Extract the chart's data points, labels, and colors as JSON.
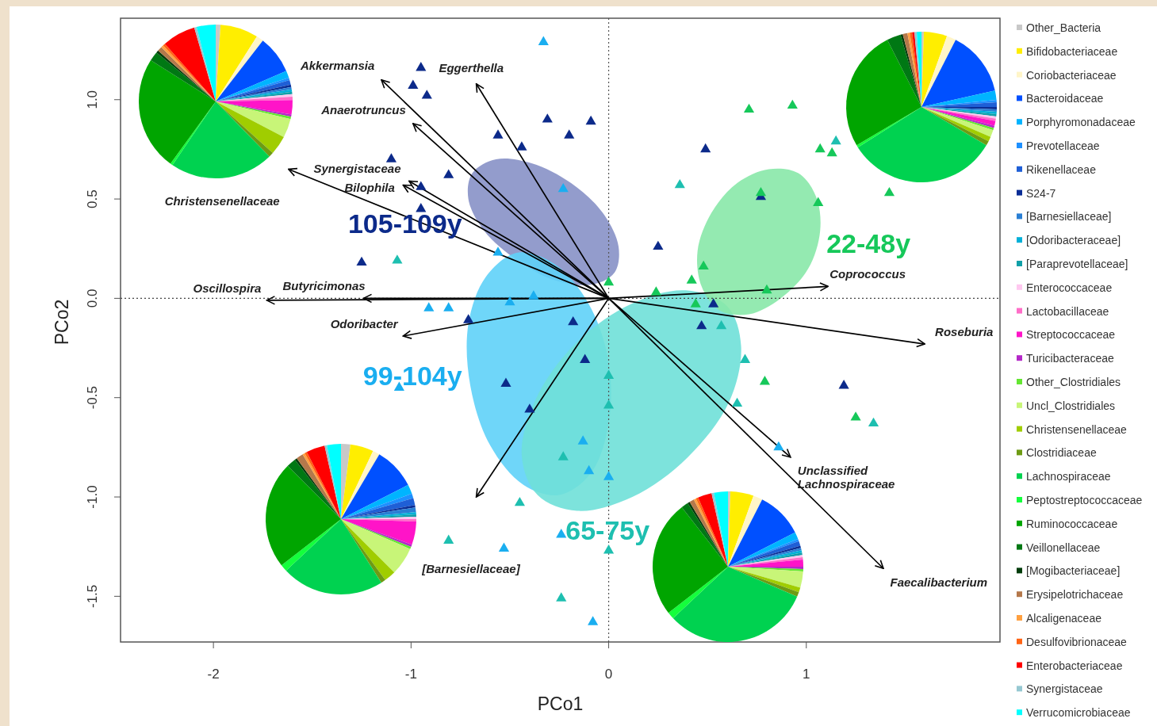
{
  "chart_data": [
    {
      "type": "scatter",
      "xlabel": "PCo1",
      "ylabel": "PCo2",
      "xlim": [
        -2.47,
        1.98
      ],
      "ylim": [
        -1.73,
        1.41
      ],
      "xticks": [
        -2,
        -1,
        0,
        1
      ],
      "yticks": [
        {
          "value": -1.5,
          "label": "-1.5"
        },
        {
          "value": -1,
          "label": "-1.0"
        },
        {
          "value": -0.5,
          "label": "-0.5"
        },
        {
          "value": 0,
          "label": "0.0"
        },
        {
          "value": 0.5,
          "label": "0.5"
        },
        {
          "value": 1,
          "label": "1.0"
        }
      ],
      "ref_lines": [
        {
          "axis": "x",
          "value": 0,
          "line_style": "dotted",
          "color": "#555555"
        },
        {
          "axis": "y",
          "value": 0,
          "line_style": "dotted",
          "color": "#444444"
        }
      ],
      "series": [
        {
          "type": "area",
          "color": "#8791c6",
          "x": [
            0.03,
            -0.08,
            -0.27,
            -0.46,
            -0.63,
            -0.71,
            -0.69,
            -0.57,
            -0.39,
            -0.19,
            -0.03,
            0.05
          ],
          "values": [
            0.13,
            0.07,
            0.09,
            0.19,
            0.34,
            0.5,
            0.63,
            0.7,
            0.68,
            0.58,
            0.43,
            0.26
          ]
        },
        {
          "type": "area",
          "color": "#5fd2f8",
          "x": [
            -0.25,
            -0.43,
            -0.6,
            -0.7,
            -0.71,
            -0.62,
            -0.46,
            -0.27,
            -0.1,
            0.0,
            0.0,
            -0.09
          ],
          "values": [
            -0.99,
            -0.94,
            -0.74,
            -0.44,
            -0.13,
            0.11,
            0.23,
            0.17,
            -0.03,
            -0.32,
            -0.63,
            -0.88
          ]
        },
        {
          "type": "area",
          "color": "#6fe0d8",
          "x": [
            0.6,
            0.67,
            0.61,
            0.4,
            0.12,
            -0.16,
            -0.36,
            -0.44,
            -0.37,
            -0.17,
            0.11,
            0.39
          ],
          "values": [
            -0.04,
            -0.24,
            -0.52,
            -0.8,
            -1.0,
            -1.07,
            -0.99,
            -0.79,
            -0.51,
            -0.23,
            -0.03,
            0.04
          ]
        },
        {
          "type": "area",
          "color": "#88e8a8",
          "x": [
            0.96,
            1.05,
            1.07,
            1.01,
            0.87,
            0.71,
            0.56,
            0.47,
            0.45,
            0.52,
            0.65,
            0.81
          ],
          "values": [
            0.63,
            0.51,
            0.34,
            0.15,
            0.0,
            -0.08,
            -0.06,
            0.06,
            0.24,
            0.43,
            0.58,
            0.65
          ]
        },
        {
          "name": "105-109y",
          "type": "scatter",
          "marker": "triangle",
          "color": "#0c2a8a",
          "x": [
            -0.95,
            -0.99,
            -0.92,
            -0.31,
            -0.09,
            -0.2,
            -0.56,
            -0.44,
            -0.81,
            -1.1,
            -0.95,
            -0.95,
            -1.25,
            0.77,
            0.49,
            0.25,
            0.53,
            0.47,
            -0.71,
            -0.18,
            -0.12,
            -0.52,
            -0.4,
            1.19
          ],
          "values": [
            1.16,
            1.07,
            1.02,
            0.9,
            0.89,
            0.82,
            0.82,
            0.76,
            0.62,
            0.7,
            0.56,
            0.45,
            0.18,
            0.51,
            0.75,
            0.26,
            -0.03,
            -0.14,
            -0.11,
            -0.12,
            -0.31,
            -0.43,
            -0.56,
            -0.44
          ]
        },
        {
          "name": "99-104y",
          "type": "scatter",
          "marker": "triangle",
          "color": "#1aaef0",
          "x": [
            -0.33,
            -0.23,
            -0.56,
            -0.38,
            -0.91,
            -0.81,
            -0.5,
            -1.06,
            -0.13,
            -0.1,
            0.0,
            -0.24,
            -0.53,
            -0.08,
            0.86
          ],
          "values": [
            1.29,
            0.55,
            0.23,
            0.01,
            -0.05,
            -0.05,
            -0.02,
            -0.45,
            -0.72,
            -0.87,
            -0.9,
            -1.19,
            -1.26,
            -1.63,
            -0.75
          ]
        },
        {
          "name": "65-75y",
          "type": "scatter",
          "marker": "triangle",
          "color": "#1ebfb0",
          "x": [
            -1.07,
            -0.81,
            -0.45,
            -0.23,
            0.0,
            0.0,
            -0.24,
            0.0,
            1.15,
            0.36,
            0.57,
            0.69,
            0.65,
            1.34
          ],
          "values": [
            0.19,
            -1.22,
            -1.03,
            -0.8,
            -0.39,
            -0.54,
            -1.51,
            -1.27,
            0.79,
            0.57,
            -0.14,
            -0.31,
            -0.53,
            -0.63
          ]
        },
        {
          "name": "22-48y",
          "type": "scatter",
          "marker": "triangle",
          "color": "#16c85a",
          "x": [
            0.71,
            0.93,
            1.07,
            1.13,
            1.42,
            1.06,
            0.77,
            0.48,
            0.42,
            0.24,
            0.8,
            0.44,
            0.0,
            0.79,
            1.25
          ],
          "values": [
            0.95,
            0.97,
            0.75,
            0.73,
            0.53,
            0.48,
            0.53,
            0.16,
            0.09,
            0.03,
            0.04,
            -0.03,
            0.08,
            -0.42,
            -0.6
          ]
        },
        {
          "name": "Akkermansia",
          "type": "line",
          "color": "#000000",
          "x": [
            0,
            -1.15
          ],
          "values": [
            0,
            1.1
          ]
        },
        {
          "name": "Eggerthella",
          "type": "line",
          "color": "#000000",
          "x": [
            0,
            -0.67
          ],
          "values": [
            0,
            1.08
          ]
        },
        {
          "name": "Anaerotruncus",
          "type": "line",
          "color": "#000000",
          "x": [
            0,
            -0.99
          ],
          "values": [
            0,
            0.88
          ]
        },
        {
          "name": "Synergistaceae",
          "type": "line",
          "color": "#000000",
          "x": [
            0,
            -1.01
          ],
          "values": [
            0,
            0.59
          ]
        },
        {
          "name": "Bilophila",
          "type": "line",
          "color": "#000000",
          "x": [
            0,
            -1.04
          ],
          "values": [
            0,
            0.57
          ]
        },
        {
          "name": "Christensenellaceae",
          "type": "line",
          "color": "#000000",
          "x": [
            0,
            -1.62
          ],
          "values": [
            0,
            0.65
          ]
        },
        {
          "name": "Butyricimonas",
          "type": "line",
          "color": "#000000",
          "x": [
            0,
            -1.24
          ],
          "values": [
            0,
            0.0
          ]
        },
        {
          "name": "Oscillospira",
          "type": "line",
          "color": "#000000",
          "x": [
            0,
            -1.73
          ],
          "values": [
            0,
            -0.01
          ]
        },
        {
          "name": "Odoribacter",
          "type": "line",
          "color": "#000000",
          "x": [
            0,
            -1.04
          ],
          "values": [
            0,
            -0.19
          ]
        },
        {
          "name": "[Barnesiellaceae]",
          "type": "line",
          "color": "#000000",
          "x": [
            0,
            -0.67
          ],
          "values": [
            0,
            -1.0
          ]
        },
        {
          "name": "Coprococcus",
          "type": "line",
          "color": "#000000",
          "x": [
            0,
            1.11
          ],
          "values": [
            0,
            0.06
          ]
        },
        {
          "name": "Roseburia",
          "type": "line",
          "color": "#000000",
          "x": [
            0,
            1.6
          ],
          "values": [
            0,
            -0.23
          ]
        },
        {
          "name": "Unclassified Lachnospiraceae",
          "type": "line",
          "color": "#000000",
          "x": [
            0,
            0.92
          ],
          "values": [
            0,
            -0.8
          ]
        },
        {
          "name": "Faecalibacterium",
          "type": "line",
          "color": "#000000",
          "x": [
            0,
            1.39
          ],
          "values": [
            0,
            -1.36
          ]
        }
      ]
    },
    {
      "type": "pie",
      "legend": "right",
      "categories": [
        "Other_Bacteria",
        "Bifidobacteriaceae",
        "Coriobacteriaceae",
        "Bacteroidaceae",
        "Porphyromonadaceae",
        "Prevotellaceae",
        "Rikenellaceae",
        "S24-7",
        "[Barnesiellaceae]",
        "[Odoribacteraceae]",
        "[Paraprevotellaceae]",
        "Enterococcaceae",
        "Lactobacillaceae",
        "Streptococcaceae",
        "Turicibacteraceae",
        "Other_Clostridiales",
        "Uncl_Clostridiales",
        "Christensenellaceae",
        "Clostridiaceae",
        "Lachnospiraceae",
        "Peptostreptococcaceae",
        "Ruminococcaceae",
        "Veillonellaceae",
        "[Mogibacteriaceae]",
        "Erysipelotrichaceae",
        "Alcaligenaceae",
        "Desulfovibrionaceae",
        "Enterobacteriaceae",
        "Synergistaceae",
        "Verrucomicrobiaceae"
      ],
      "values": [
        1,
        8,
        1.5,
        8,
        1.5,
        0.5,
        1,
        0.5,
        0.5,
        0.5,
        0.5,
        0.5,
        0.7,
        3,
        0.5,
        0.5,
        4,
        4,
        1,
        21.8,
        0.5,
        24,
        2,
        0.5,
        1,
        0.5,
        0.5,
        7,
        0.5,
        4
      ],
      "colors": [
        "#c8c8c8",
        "#ffee00",
        "#fff5c8",
        "#0050ff",
        "#00b4ff",
        "#1e90ff",
        "#1f5fd6",
        "#0a2d96",
        "#2a7fd4",
        "#00b0d8",
        "#10a0a8",
        "#ffc8f0",
        "#ff6ec8",
        "#ff14c8",
        "#b428c8",
        "#64e632",
        "#c8f578",
        "#a0cd00",
        "#6e9b14",
        "#00d250",
        "#14ff3c",
        "#00a500",
        "#007814",
        "#003c0a",
        "#b4784b",
        "#ffa040",
        "#ff6414",
        "#ff0000",
        "#96c8d2",
        "#00ffff"
      ]
    },
    {
      "type": "pie",
      "categories": [
        null,
        null,
        null,
        null,
        null,
        null,
        null,
        null,
        null,
        null,
        null,
        null,
        null,
        null,
        null,
        null,
        null,
        null,
        null,
        null,
        null,
        null,
        null,
        null,
        null,
        null,
        null,
        null,
        null,
        null
      ],
      "values": [
        0.5,
        5,
        2,
        14,
        2,
        0.5,
        1,
        0.5,
        0.5,
        0.5,
        0.5,
        0.5,
        0.5,
        1,
        0.5,
        0.5,
        1.5,
        1,
        1,
        32.5,
        0.5,
        26,
        3,
        0.5,
        1,
        0.5,
        0.5,
        0.5,
        0.5,
        1
      ],
      "colors": [
        "#c8c8c8",
        "#ffee00",
        "#fff5c8",
        "#0050ff",
        "#00b4ff",
        "#1e90ff",
        "#1f5fd6",
        "#0a2d96",
        "#2a7fd4",
        "#00b0d8",
        "#10a0a8",
        "#ffc8f0",
        "#ff6ec8",
        "#ff14c8",
        "#b428c8",
        "#64e632",
        "#c8f578",
        "#a0cd00",
        "#6e9b14",
        "#00d250",
        "#14ff3c",
        "#00a500",
        "#007814",
        "#003c0a",
        "#b4784b",
        "#ffa040",
        "#ff6414",
        "#ff0000",
        "#96c8d2",
        "#00ffff"
      ]
    },
    {
      "type": "pie",
      "categories": [
        null,
        null,
        null,
        null,
        null,
        null,
        null,
        null,
        null,
        null,
        null,
        null,
        null,
        null,
        null,
        null,
        null,
        null,
        null,
        null,
        null,
        null,
        null,
        null,
        null,
        null,
        null,
        null,
        null,
        null
      ],
      "values": [
        2,
        5,
        1.5,
        9,
        2,
        1,
        1.5,
        0.5,
        1,
        0.5,
        0.5,
        0.5,
        0.5,
        5,
        0.5,
        0.5,
        6,
        2.5,
        1,
        22,
        1.5,
        23,
        2,
        0.5,
        1.5,
        0.5,
        0.5,
        4,
        0.5,
        3
      ],
      "colors": [
        "#c8c8c8",
        "#ffee00",
        "#fff5c8",
        "#0050ff",
        "#00b4ff",
        "#1e90ff",
        "#1f5fd6",
        "#0a2d96",
        "#2a7fd4",
        "#00b0d8",
        "#10a0a8",
        "#ffc8f0",
        "#ff6ec8",
        "#ff14c8",
        "#b428c8",
        "#64e632",
        "#c8f578",
        "#a0cd00",
        "#6e9b14",
        "#00d250",
        "#14ff3c",
        "#00a500",
        "#007814",
        "#003c0a",
        "#b4784b",
        "#ffa040",
        "#ff6414",
        "#ff0000",
        "#96c8d2",
        "#00ffff"
      ]
    },
    {
      "type": "pie",
      "categories": [
        null,
        null,
        null,
        null,
        null,
        null,
        null,
        null,
        null,
        null,
        null,
        null,
        null,
        null,
        null,
        null,
        null,
        null,
        null,
        null,
        null,
        null,
        null,
        null,
        null,
        null,
        null,
        null,
        null,
        null
      ],
      "values": [
        0.5,
        5,
        2,
        10,
        1.5,
        0.5,
        1,
        0.5,
        0.5,
        0.5,
        0.5,
        0.5,
        0.5,
        1.5,
        0.5,
        0.5,
        3.5,
        1,
        1,
        31.5,
        1.5,
        25,
        1.5,
        0.5,
        1,
        0.5,
        0.5,
        3,
        0.5,
        3
      ],
      "colors": [
        "#c8c8c8",
        "#ffee00",
        "#fff5c8",
        "#0050ff",
        "#00b4ff",
        "#1e90ff",
        "#1f5fd6",
        "#0a2d96",
        "#2a7fd4",
        "#00b0d8",
        "#10a0a8",
        "#ffc8f0",
        "#ff6ec8",
        "#ff14c8",
        "#b428c8",
        "#64e632",
        "#c8f578",
        "#a0cd00",
        "#6e9b14",
        "#00d250",
        "#14ff3c",
        "#00a500",
        "#007814",
        "#003c0a",
        "#b4784b",
        "#ffa040",
        "#ff6414",
        "#ff0000",
        "#96c8d2",
        "#00ffff"
      ]
    }
  ]
}
